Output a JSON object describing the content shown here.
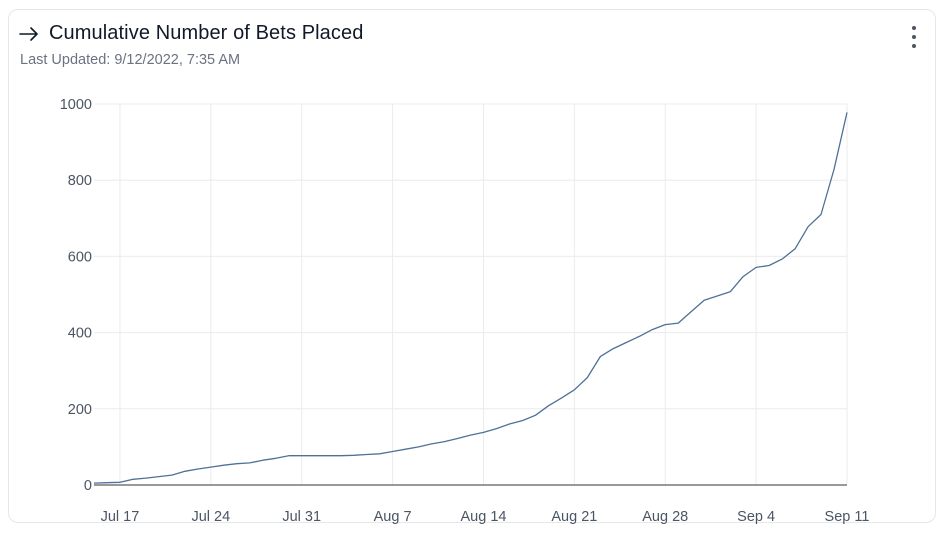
{
  "header": {
    "arrow_icon": "arrow-right-icon",
    "title": "Cumulative Number of Bets Placed",
    "subtitle": "Last Updated: 9/12/2022, 7:35 AM",
    "menu_icon": "kebab-menu-icon"
  },
  "colors": {
    "line": "#4e7196",
    "grid": "#ebebeb",
    "axis": "#333333",
    "tick_text": "#4b5563"
  },
  "chart_data": {
    "type": "line",
    "title": "Cumulative Number of Bets Placed",
    "xlabel": "",
    "ylabel": "",
    "x_ticks": [
      "Jul 17",
      "Jul 24",
      "Jul 31",
      "Aug 7",
      "Aug 14",
      "Aug 21",
      "Aug 28",
      "Sep 4",
      "Sep 11"
    ],
    "y_ticks": [
      0,
      200,
      400,
      600,
      800,
      1000
    ],
    "xlim": [
      "2022-07-15",
      "2022-09-11"
    ],
    "ylim": [
      0,
      1000
    ],
    "grid": true,
    "series": [
      {
        "points": [
          [
            "2022-07-15",
            5
          ],
          [
            "2022-07-16",
            6
          ],
          [
            "2022-07-17",
            7
          ],
          [
            "2022-07-18",
            15
          ],
          [
            "2022-07-19",
            18
          ],
          [
            "2022-07-20",
            22
          ],
          [
            "2022-07-21",
            26
          ],
          [
            "2022-07-22",
            36
          ],
          [
            "2022-07-23",
            42
          ],
          [
            "2022-07-24",
            47
          ],
          [
            "2022-07-25",
            52
          ],
          [
            "2022-07-26",
            56
          ],
          [
            "2022-07-27",
            58
          ],
          [
            "2022-07-28",
            65
          ],
          [
            "2022-07-29",
            70
          ],
          [
            "2022-07-30",
            77
          ],
          [
            "2022-07-31",
            77
          ],
          [
            "2022-08-01",
            77
          ],
          [
            "2022-08-02",
            77
          ],
          [
            "2022-08-03",
            77
          ],
          [
            "2022-08-04",
            78
          ],
          [
            "2022-08-05",
            80
          ],
          [
            "2022-08-06",
            82
          ],
          [
            "2022-08-07",
            88
          ],
          [
            "2022-08-08",
            94
          ],
          [
            "2022-08-09",
            100
          ],
          [
            "2022-08-10",
            108
          ],
          [
            "2022-08-11",
            114
          ],
          [
            "2022-08-12",
            122
          ],
          [
            "2022-08-13",
            131
          ],
          [
            "2022-08-14",
            138
          ],
          [
            "2022-08-15",
            148
          ],
          [
            "2022-08-16",
            160
          ],
          [
            "2022-08-17",
            169
          ],
          [
            "2022-08-18",
            183
          ],
          [
            "2022-08-19",
            208
          ],
          [
            "2022-08-20",
            228
          ],
          [
            "2022-08-21",
            250
          ],
          [
            "2022-08-22",
            282
          ],
          [
            "2022-08-23",
            337
          ],
          [
            "2022-08-24",
            358
          ],
          [
            "2022-08-25",
            374
          ],
          [
            "2022-08-26",
            390
          ],
          [
            "2022-08-27",
            408
          ],
          [
            "2022-08-28",
            421
          ],
          [
            "2022-08-29",
            425
          ],
          [
            "2022-08-30",
            455
          ],
          [
            "2022-08-31",
            485
          ],
          [
            "2022-09-01",
            496
          ],
          [
            "2022-09-02",
            507
          ],
          [
            "2022-09-03",
            547
          ],
          [
            "2022-09-04",
            571
          ],
          [
            "2022-09-05",
            576
          ],
          [
            "2022-09-06",
            593
          ],
          [
            "2022-09-07",
            620
          ],
          [
            "2022-09-08",
            678
          ],
          [
            "2022-09-09",
            710
          ],
          [
            "2022-09-10",
            828
          ],
          [
            "2022-09-11",
            978
          ]
        ]
      }
    ]
  }
}
